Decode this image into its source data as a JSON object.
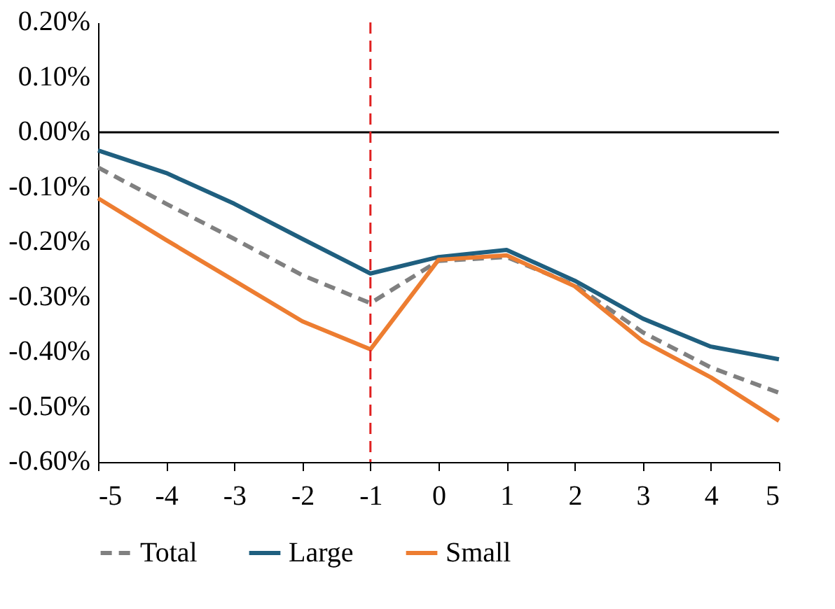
{
  "chart_data": {
    "type": "line",
    "x": [
      -5,
      -4,
      -3,
      -2,
      -1,
      0,
      1,
      2,
      3,
      4,
      5
    ],
    "series": [
      {
        "name": "Total",
        "color": "#808080",
        "line_style": "dashed",
        "values": [
          -0.064,
          -0.13,
          -0.194,
          -0.26,
          -0.311,
          -0.234,
          -0.227,
          -0.278,
          -0.364,
          -0.428,
          -0.474
        ]
      },
      {
        "name": "Large",
        "color": "#1f5f7f",
        "line_style": "solid",
        "values": [
          -0.033,
          -0.074,
          -0.13,
          -0.194,
          -0.257,
          -0.227,
          -0.214,
          -0.27,
          -0.339,
          -0.39,
          -0.413
        ]
      },
      {
        "name": "Small",
        "color": "#ed7d31",
        "line_style": "solid",
        "values": [
          -0.12,
          -0.196,
          -0.27,
          -0.344,
          -0.395,
          -0.232,
          -0.224,
          -0.28,
          -0.38,
          -0.446,
          -0.525
        ]
      }
    ],
    "xlim": [
      -5,
      5
    ],
    "xticks": [
      -5,
      -4,
      -3,
      -2,
      -1,
      0,
      1,
      2,
      3,
      4,
      5
    ],
    "ylim": [
      -0.6,
      0.2
    ],
    "yticks": [
      {
        "value": 0.2,
        "label": "0.20%"
      },
      {
        "value": 0.1,
        "label": "0.10%"
      },
      {
        "value": 0,
        "label": "0.00%"
      },
      {
        "value": -0.1,
        "label": "-0.10%"
      },
      {
        "value": -0.2,
        "label": "-0.20%"
      },
      {
        "value": -0.3,
        "label": "-0.30%"
      },
      {
        "value": -0.4,
        "label": "-0.40%"
      },
      {
        "value": -0.5,
        "label": "-0.50%"
      },
      {
        "value": -0.6,
        "label": "-0.60%"
      }
    ],
    "ref_lines": [
      {
        "axis": "y",
        "value": 0,
        "color": "#000000",
        "line_style": "solid"
      },
      {
        "axis": "x",
        "value": -1,
        "color": "#e02020",
        "line_style": "dashed"
      }
    ],
    "grid": false,
    "legend": "bottom",
    "marker": "none"
  }
}
